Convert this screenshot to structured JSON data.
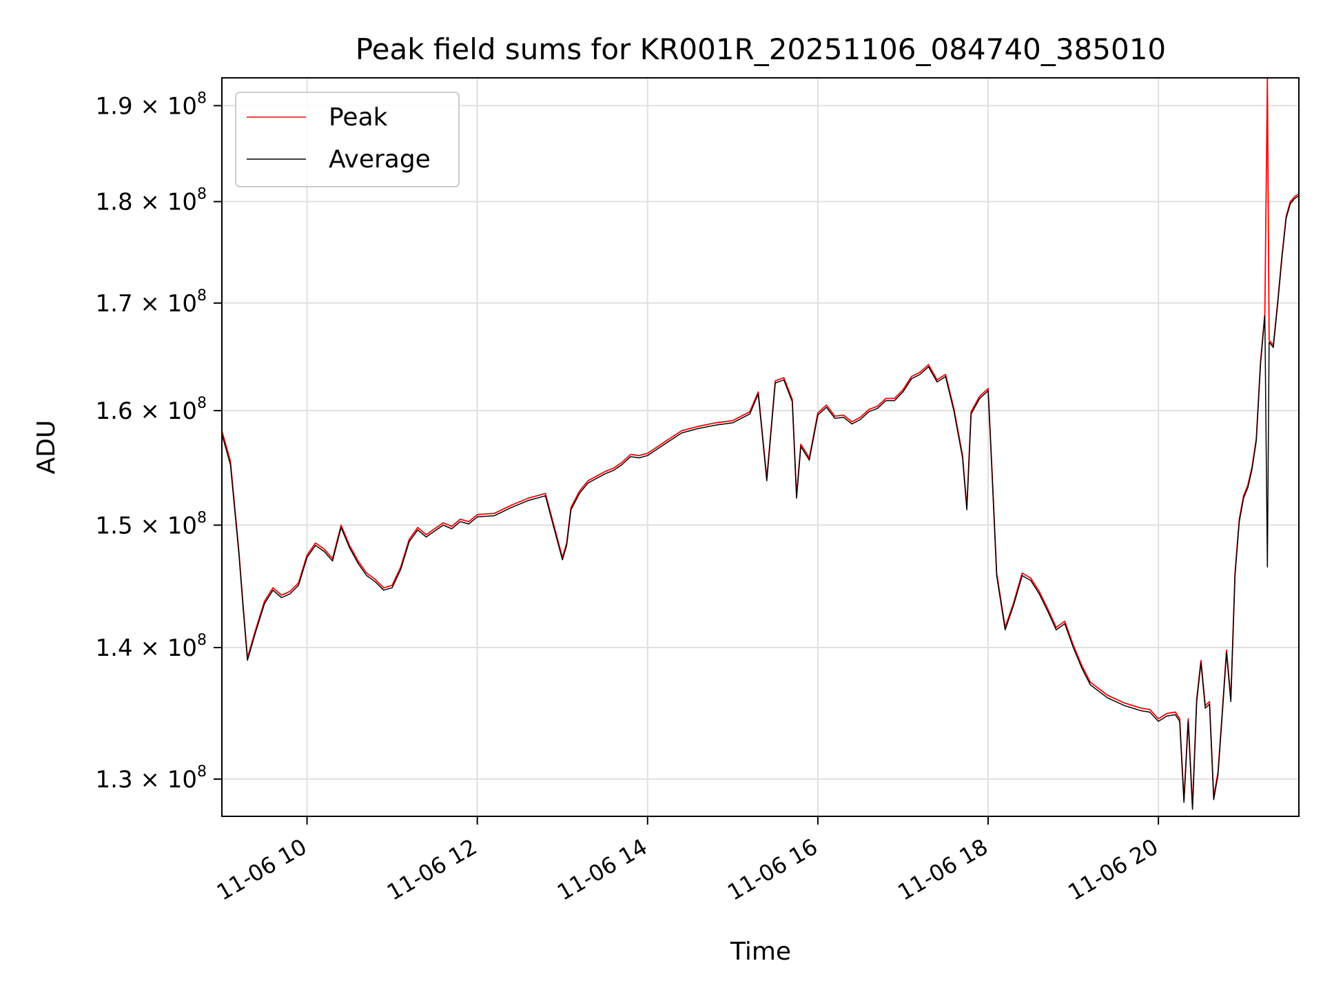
{
  "chart_data": {
    "type": "line",
    "title": "Peak field sums for KR001R_20251106_084740_385010",
    "xlabel": "Time",
    "ylabel": "ADU",
    "x_unit": "hours of 2025-11-06",
    "xlim": [
      9.0,
      21.65
    ],
    "ylim": [
      127300000,
      193000000
    ],
    "y_scale": "log",
    "grid": true,
    "legend_position": "top-left",
    "x_ticks": [
      {
        "value": 10,
        "label": "11-06 10"
      },
      {
        "value": 12,
        "label": "11-06 12"
      },
      {
        "value": 14,
        "label": "11-06 14"
      },
      {
        "value": 16,
        "label": "11-06 16"
      },
      {
        "value": 18,
        "label": "11-06 18"
      },
      {
        "value": 20,
        "label": "11-06 20"
      }
    ],
    "y_ticks": [
      {
        "value": 130000000,
        "mantissa": "1.3",
        "exp": "8"
      },
      {
        "value": 140000000,
        "mantissa": "1.4",
        "exp": "8"
      },
      {
        "value": 150000000,
        "mantissa": "1.5",
        "exp": "8"
      },
      {
        "value": 160000000,
        "mantissa": "1.6",
        "exp": "8"
      },
      {
        "value": 170000000,
        "mantissa": "1.7",
        "exp": "8"
      },
      {
        "value": 180000000,
        "mantissa": "1.8",
        "exp": "8"
      },
      {
        "value": 190000000,
        "mantissa": "1.9",
        "exp": "8"
      }
    ],
    "times_unit_sym": "×",
    "tick_base": "10",
    "series": [
      {
        "name": "Peak",
        "color": "#ff0000",
        "x": [
          9.0,
          9.1,
          9.2,
          9.25,
          9.3,
          9.4,
          9.5,
          9.6,
          9.7,
          9.8,
          9.9,
          10.0,
          10.1,
          10.2,
          10.3,
          10.4,
          10.5,
          10.6,
          10.7,
          10.8,
          10.9,
          11.0,
          11.1,
          11.2,
          11.3,
          11.4,
          11.5,
          11.6,
          11.7,
          11.8,
          11.9,
          12.0,
          12.2,
          12.4,
          12.6,
          12.8,
          13.0,
          13.05,
          13.1,
          13.2,
          13.3,
          13.4,
          13.5,
          13.6,
          13.7,
          13.8,
          13.9,
          14.0,
          14.2,
          14.4,
          14.6,
          14.8,
          15.0,
          15.2,
          15.3,
          15.4,
          15.5,
          15.6,
          15.7,
          15.75,
          15.8,
          15.9,
          16.0,
          16.1,
          16.2,
          16.3,
          16.4,
          16.5,
          16.6,
          16.7,
          16.8,
          16.9,
          17.0,
          17.1,
          17.2,
          17.3,
          17.4,
          17.5,
          17.6,
          17.7,
          17.75,
          17.8,
          17.9,
          18.0,
          18.05,
          18.1,
          18.2,
          18.3,
          18.4,
          18.5,
          18.6,
          18.7,
          18.8,
          18.9,
          19.0,
          19.1,
          19.2,
          19.4,
          19.6,
          19.8,
          19.9,
          20.0,
          20.1,
          20.2,
          20.25,
          20.3,
          20.35,
          20.4,
          20.45,
          20.5,
          20.55,
          20.6,
          20.65,
          20.7,
          20.75,
          20.8,
          20.85,
          20.9,
          20.95,
          21.0,
          21.05,
          21.1,
          21.15,
          21.2,
          21.25,
          21.28,
          21.3,
          21.35,
          21.4,
          21.45,
          21.5,
          21.55,
          21.6,
          21.65
        ],
        "y": [
          158200000,
          155500000,
          147800000,
          143300000,
          139200000,
          141500000,
          143700000,
          144800000,
          144200000,
          144500000,
          145200000,
          147500000,
          148500000,
          148000000,
          147200000,
          150000000,
          148300000,
          147000000,
          146000000,
          145500000,
          144800000,
          145000000,
          146500000,
          148800000,
          149800000,
          149200000,
          149700000,
          150200000,
          149900000,
          150500000,
          150300000,
          150900000,
          151000000,
          151700000,
          152300000,
          152700000,
          147300000,
          148500000,
          151500000,
          152900000,
          153800000,
          154200000,
          154600000,
          154900000,
          155400000,
          156100000,
          156000000,
          156200000,
          157200000,
          158200000,
          158600000,
          158900000,
          159100000,
          159900000,
          161700000,
          154000000,
          162700000,
          163000000,
          161000000,
          152500000,
          157000000,
          155800000,
          159800000,
          160500000,
          159500000,
          159600000,
          159000000,
          159400000,
          160100000,
          160400000,
          161100000,
          161100000,
          161900000,
          163100000,
          163500000,
          164200000,
          162800000,
          163300000,
          160100000,
          156000000,
          151500000,
          159900000,
          161300000,
          162000000,
          154000000,
          146000000,
          141600000,
          143600000,
          146000000,
          145600000,
          144500000,
          143100000,
          141600000,
          142100000,
          140200000,
          138600000,
          137300000,
          136300000,
          135700000,
          135300000,
          135200000,
          134500000,
          134900000,
          135000000,
          134500000,
          128500000,
          134500000,
          128000000,
          136000000,
          139000000,
          135500000,
          135800000,
          128700000,
          130500000,
          135000000,
          139800000,
          136000000,
          146000000,
          150500000,
          152500000,
          153400000,
          155000000,
          157500000,
          164500000,
          169000000,
          193000000,
          166500000,
          166000000,
          170000000,
          174500000,
          178500000,
          180000000,
          180500000,
          180800000
        ]
      },
      {
        "name": "Average",
        "color": "#000000",
        "x": [
          9.0,
          9.1,
          9.2,
          9.25,
          9.3,
          9.4,
          9.5,
          9.6,
          9.7,
          9.8,
          9.9,
          10.0,
          10.1,
          10.2,
          10.3,
          10.4,
          10.5,
          10.6,
          10.7,
          10.8,
          10.9,
          11.0,
          11.1,
          11.2,
          11.3,
          11.4,
          11.5,
          11.6,
          11.7,
          11.8,
          11.9,
          12.0,
          12.2,
          12.4,
          12.6,
          12.8,
          13.0,
          13.05,
          13.1,
          13.2,
          13.3,
          13.4,
          13.5,
          13.6,
          13.7,
          13.8,
          13.9,
          14.0,
          14.2,
          14.4,
          14.6,
          14.8,
          15.0,
          15.2,
          15.3,
          15.4,
          15.5,
          15.6,
          15.7,
          15.75,
          15.8,
          15.9,
          16.0,
          16.1,
          16.2,
          16.3,
          16.4,
          16.5,
          16.6,
          16.7,
          16.8,
          16.9,
          17.0,
          17.1,
          17.2,
          17.3,
          17.4,
          17.5,
          17.6,
          17.7,
          17.75,
          17.8,
          17.9,
          18.0,
          18.05,
          18.1,
          18.2,
          18.3,
          18.4,
          18.5,
          18.6,
          18.7,
          18.8,
          18.9,
          19.0,
          19.1,
          19.2,
          19.4,
          19.6,
          19.8,
          19.9,
          20.0,
          20.1,
          20.2,
          20.25,
          20.3,
          20.35,
          20.4,
          20.45,
          20.5,
          20.55,
          20.6,
          20.65,
          20.7,
          20.75,
          20.8,
          20.85,
          20.9,
          20.95,
          21.0,
          21.05,
          21.1,
          21.15,
          21.2,
          21.25,
          21.28,
          21.3,
          21.35,
          21.4,
          21.45,
          21.5,
          21.55,
          21.6,
          21.65
        ],
        "y": [
          157900000,
          155200000,
          147600000,
          143100000,
          139000000,
          141300000,
          143500000,
          144600000,
          144000000,
          144300000,
          145000000,
          147300000,
          148300000,
          147800000,
          147000000,
          149800000,
          148100000,
          146800000,
          145800000,
          145300000,
          144600000,
          144800000,
          146300000,
          148600000,
          149600000,
          149000000,
          149500000,
          150000000,
          149700000,
          150300000,
          150100000,
          150700000,
          150800000,
          151500000,
          152100000,
          152500000,
          147100000,
          148300000,
          151300000,
          152700000,
          153600000,
          154000000,
          154400000,
          154700000,
          155200000,
          155900000,
          155800000,
          156000000,
          157000000,
          158000000,
          158400000,
          158700000,
          158900000,
          159700000,
          161500000,
          153800000,
          162500000,
          162800000,
          160800000,
          152300000,
          156800000,
          155600000,
          159600000,
          160300000,
          159300000,
          159400000,
          158800000,
          159200000,
          159900000,
          160200000,
          160900000,
          160900000,
          161700000,
          162900000,
          163300000,
          164000000,
          162600000,
          163100000,
          159900000,
          155800000,
          151300000,
          159700000,
          161100000,
          161800000,
          153800000,
          145800000,
          141400000,
          143400000,
          145800000,
          145400000,
          144300000,
          142900000,
          141400000,
          141900000,
          140000000,
          138400000,
          137100000,
          136100000,
          135500000,
          135100000,
          135000000,
          134300000,
          134700000,
          134800000,
          134300000,
          128300000,
          134300000,
          127800000,
          135800000,
          138800000,
          135300000,
          135600000,
          128500000,
          130300000,
          134800000,
          139600000,
          135800000,
          145800000,
          150300000,
          152300000,
          153200000,
          154800000,
          157300000,
          164300000,
          168800000,
          146500000,
          166300000,
          165800000,
          169800000,
          174300000,
          178300000,
          179800000,
          180300000,
          180600000
        ]
      }
    ]
  }
}
